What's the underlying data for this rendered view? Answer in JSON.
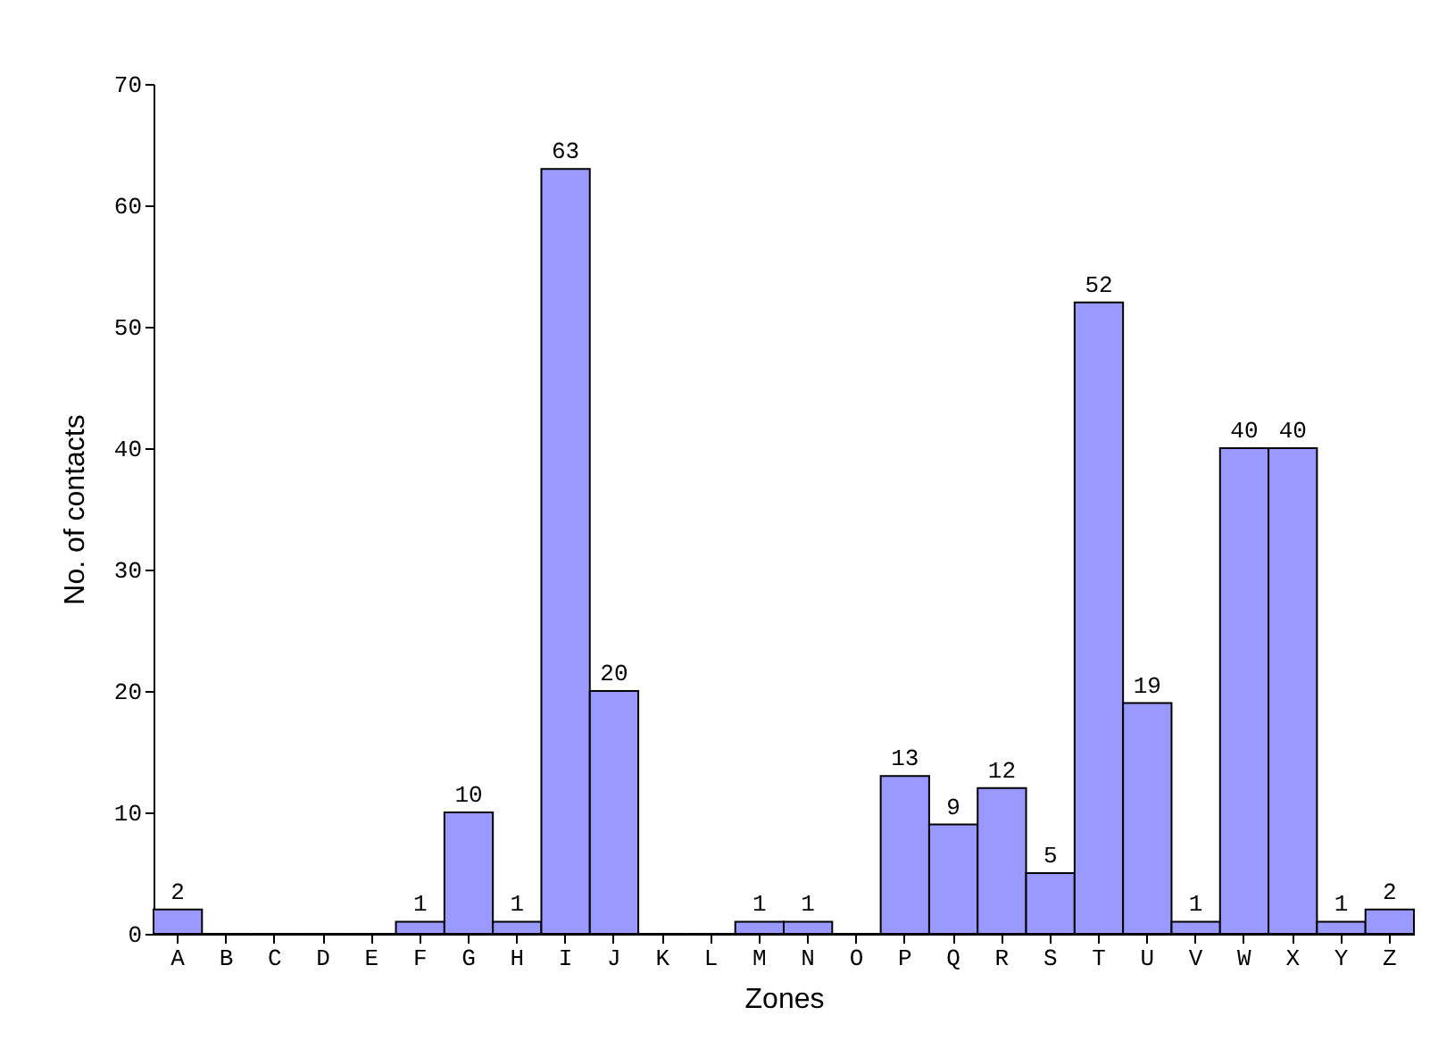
{
  "chart_data": {
    "type": "bar",
    "xlabel": "Zones",
    "ylabel": "No. of contacts",
    "categories": [
      "A",
      "B",
      "C",
      "D",
      "E",
      "F",
      "G",
      "H",
      "I",
      "J",
      "K",
      "L",
      "M",
      "N",
      "O",
      "P",
      "Q",
      "R",
      "S",
      "T",
      "U",
      "V",
      "W",
      "X",
      "Y",
      "Z"
    ],
    "values": [
      2,
      0,
      0,
      0,
      0,
      1,
      10,
      1,
      63,
      20,
      0,
      0,
      1,
      1,
      0,
      13,
      9,
      12,
      5,
      52,
      19,
      1,
      40,
      40,
      1,
      2
    ],
    "value_labels": [
      "2",
      null,
      null,
      null,
      null,
      "1",
      "10",
      "1",
      "63",
      "20",
      null,
      null,
      "1",
      "1",
      null,
      "13",
      "9",
      "12",
      "5",
      "52",
      "19",
      "1",
      "40",
      "40",
      "1",
      "2"
    ],
    "color": "#9999ff",
    "ylim": [
      0,
      70
    ],
    "yticks": [
      0,
      10,
      20,
      30,
      40,
      50,
      60,
      70
    ],
    "grid": false
  }
}
